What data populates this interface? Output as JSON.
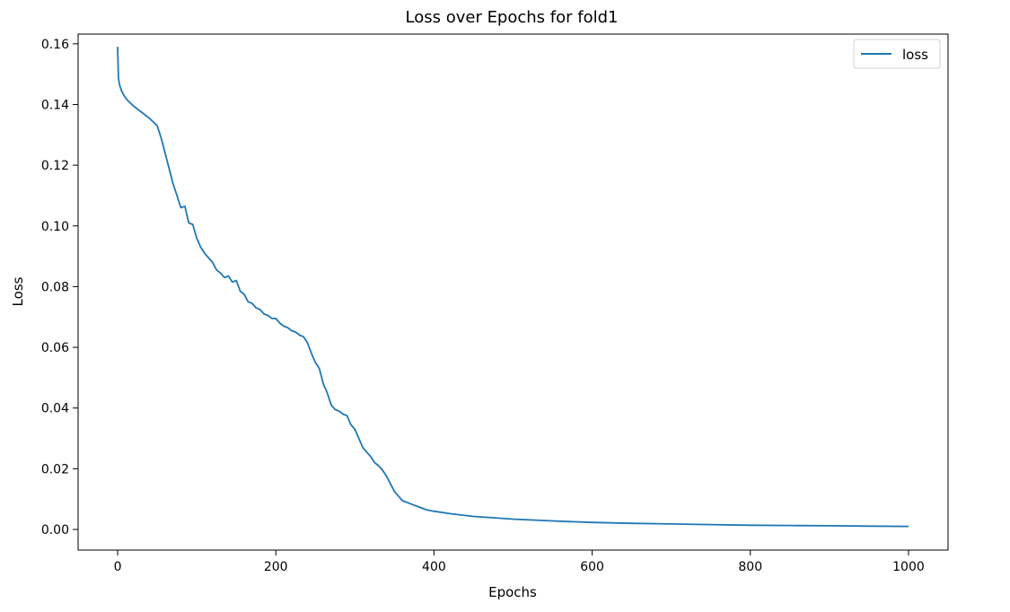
{
  "chart_data": {
    "type": "line",
    "title": "Loss over Epochs for fold1",
    "xlabel": "Epochs",
    "ylabel": "Loss",
    "xlim": [
      -50,
      1050
    ],
    "ylim": [
      -0.0068,
      0.1632
    ],
    "xticks": [
      0,
      200,
      400,
      600,
      800,
      1000
    ],
    "xtick_labels": [
      "0",
      "200",
      "400",
      "600",
      "800",
      "1000"
    ],
    "yticks": [
      0.0,
      0.02,
      0.04,
      0.06,
      0.08,
      0.1,
      0.12,
      0.14,
      0.16
    ],
    "ytick_labels": [
      "0.00",
      "0.02",
      "0.04",
      "0.06",
      "0.08",
      "0.10",
      "0.12",
      "0.14",
      "0.16"
    ],
    "grid": false,
    "legend_position": "top-right",
    "series": [
      {
        "name": "loss",
        "color": "#1f77b4",
        "x": [
          0,
          1,
          2,
          3,
          5,
          8,
          12,
          20,
          30,
          40,
          50,
          55,
          60,
          70,
          80,
          85,
          90,
          95,
          100,
          105,
          110,
          115,
          120,
          125,
          130,
          135,
          140,
          145,
          150,
          155,
          160,
          165,
          170,
          175,
          180,
          185,
          190,
          195,
          200,
          205,
          210,
          215,
          220,
          225,
          230,
          235,
          240,
          245,
          250,
          255,
          260,
          265,
          270,
          275,
          280,
          285,
          290,
          295,
          300,
          305,
          310,
          315,
          320,
          325,
          330,
          335,
          340,
          345,
          350,
          355,
          360,
          370,
          380,
          390,
          400,
          420,
          450,
          500,
          550,
          600,
          650,
          700,
          750,
          800,
          850,
          900,
          950,
          1000
        ],
        "y": [
          0.159,
          0.149,
          0.147,
          0.146,
          0.1445,
          0.143,
          0.1415,
          0.1395,
          0.1375,
          0.1355,
          0.133,
          0.129,
          0.124,
          0.114,
          0.106,
          0.1065,
          0.101,
          0.1005,
          0.096,
          0.093,
          0.091,
          0.0895,
          0.088,
          0.0855,
          0.0845,
          0.083,
          0.0835,
          0.0815,
          0.082,
          0.0785,
          0.0775,
          0.075,
          0.0745,
          0.073,
          0.0725,
          0.071,
          0.0705,
          0.0695,
          0.0695,
          0.068,
          0.067,
          0.0665,
          0.0655,
          0.065,
          0.064,
          0.0635,
          0.0615,
          0.058,
          0.055,
          0.053,
          0.048,
          0.045,
          0.041,
          0.0395,
          0.039,
          0.038,
          0.0375,
          0.0345,
          0.033,
          0.03,
          0.027,
          0.0255,
          0.024,
          0.022,
          0.021,
          0.0195,
          0.0175,
          0.015,
          0.0125,
          0.011,
          0.0095,
          0.0085,
          0.0075,
          0.0065,
          0.006,
          0.0052,
          0.0043,
          0.0034,
          0.0028,
          0.0023,
          0.002,
          0.0018,
          0.0016,
          0.0014,
          0.0013,
          0.0012,
          0.0011,
          0.001
        ]
      }
    ]
  }
}
